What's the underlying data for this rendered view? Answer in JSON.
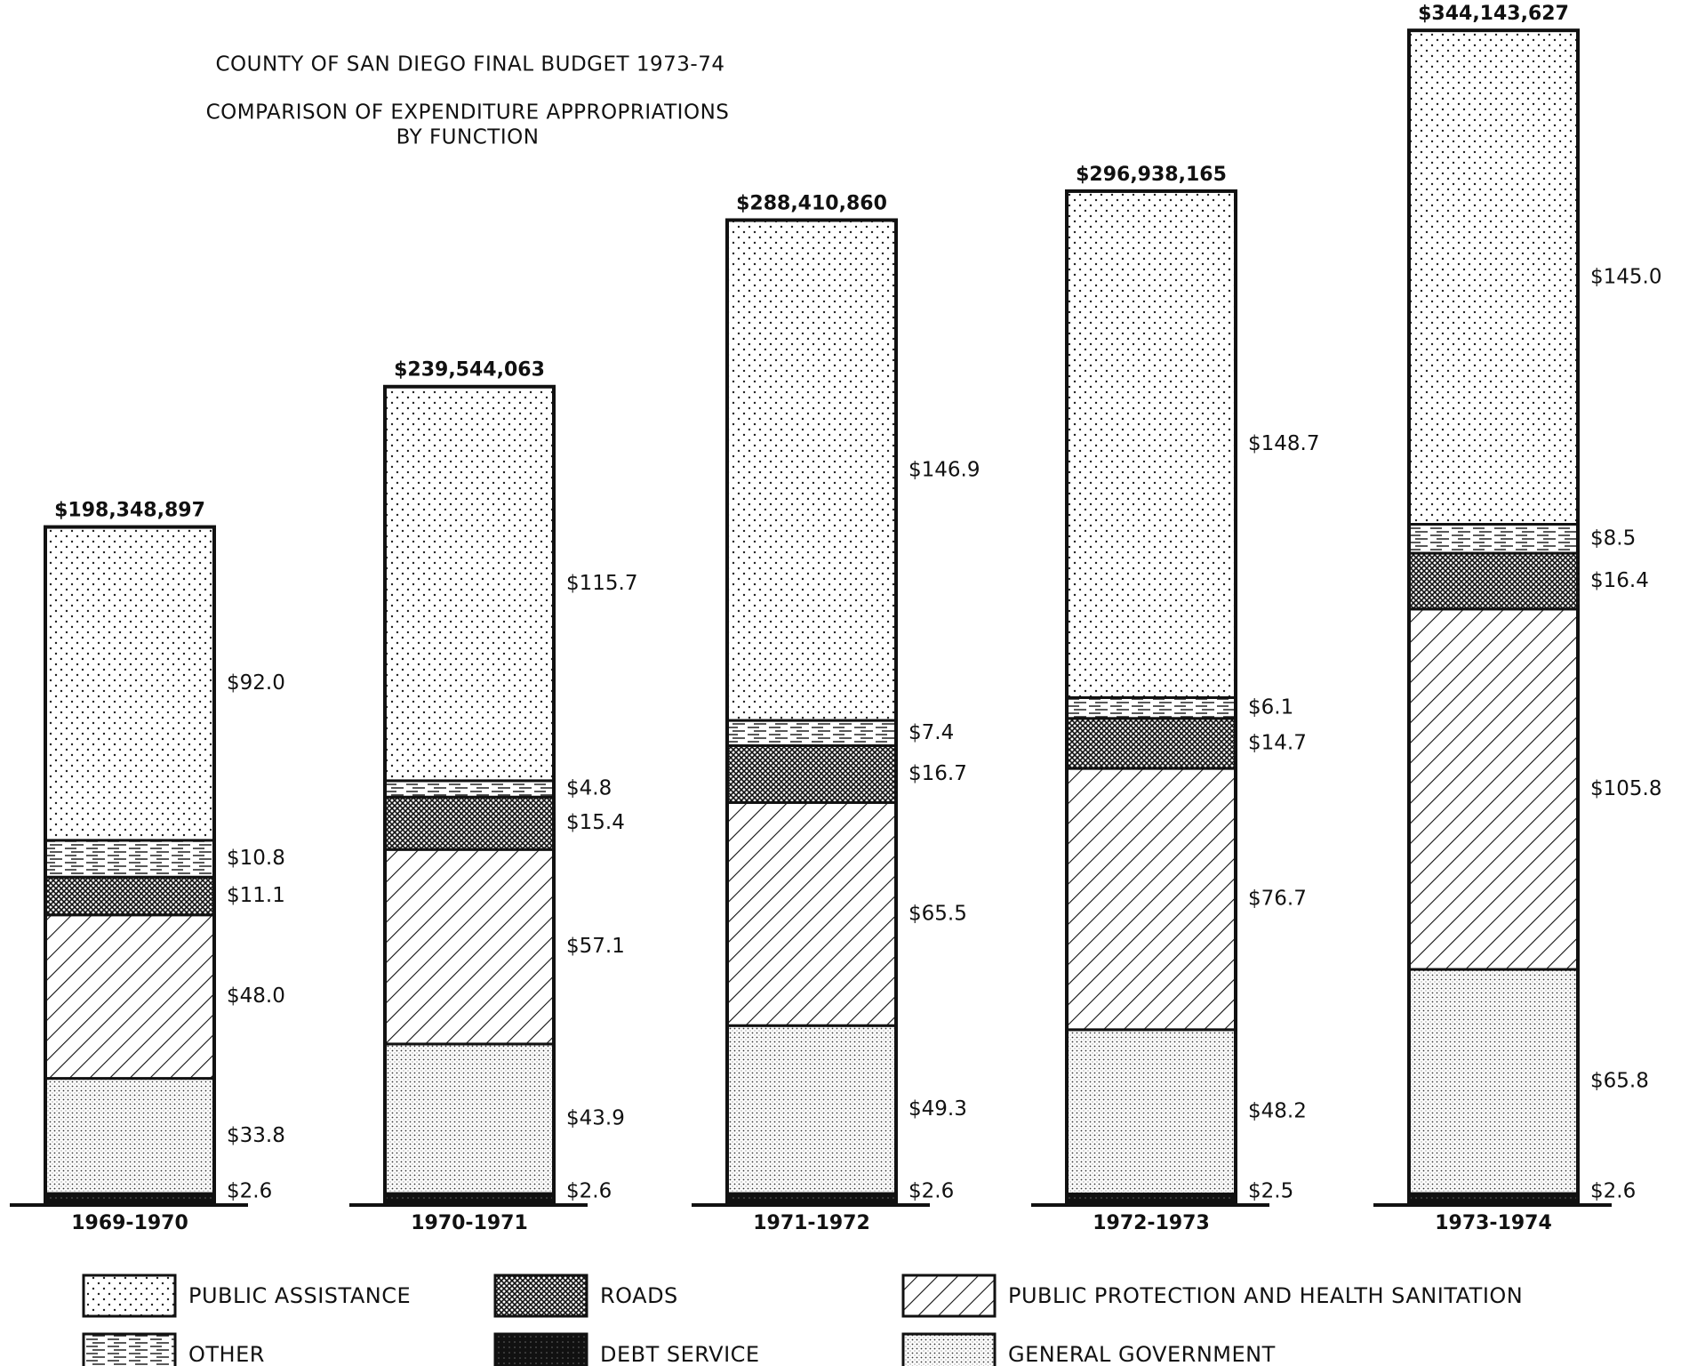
{
  "chart_data": {
    "type": "stacked_bar",
    "title": "COUNTY OF SAN DIEGO FINAL BUDGET 1973-74",
    "subtitle": [
      "COMPARISON OF EXPENDITURE APPROPRIATIONS",
      "BY FUNCTION"
    ],
    "categories": [
      "1969-1970",
      "1970-1971",
      "1971-1972",
      "1972-1973",
      "1973-1974"
    ],
    "series": [
      {
        "name": "DEBT SERVICE",
        "values": [
          2.6,
          2.6,
          2.6,
          2.5,
          2.6
        ],
        "value_labels": [
          "$2.6",
          "$2.6",
          "$2.6",
          "$2.5",
          "$2.6"
        ]
      },
      {
        "name": "GENERAL GOVERNMENT",
        "values": [
          33.8,
          43.9,
          49.3,
          48.2,
          65.8
        ],
        "value_labels": [
          "$33.8",
          "$43.9",
          "$49.3",
          "$48.2",
          "$65.8"
        ]
      },
      {
        "name": "PUBLIC PROTECTION AND HEALTH SANITATION",
        "values": [
          48.0,
          57.1,
          65.5,
          76.7,
          105.8
        ],
        "value_labels": [
          "$48.0",
          "$57.1",
          "$65.5",
          "$76.7",
          "$105.8"
        ]
      },
      {
        "name": "ROADS",
        "values": [
          11.1,
          15.4,
          16.7,
          14.7,
          16.4
        ],
        "value_labels": [
          "$11.1",
          "$15.4",
          "$16.7",
          "$14.7",
          "$16.4"
        ]
      },
      {
        "name": "OTHER",
        "values": [
          10.8,
          4.8,
          7.4,
          6.1,
          8.5
        ],
        "value_labels": [
          "$10.8",
          "$4.8",
          "$7.4",
          "$6.1",
          "$8.5"
        ]
      },
      {
        "name": "PUBLIC ASSISTANCE",
        "values": [
          92.0,
          115.7,
          146.9,
          148.7,
          145.0
        ],
        "value_labels": [
          "$92.0",
          "$115.7",
          "$146.9",
          "$148.7",
          "$145.0"
        ]
      }
    ],
    "totals": [
      {
        "value": 198.348897,
        "label": "$198,348,897"
      },
      {
        "value": 239.544063,
        "label": "$239,544,063"
      },
      {
        "value": 288.41086,
        "label": "$288,410,860"
      },
      {
        "value": 296.938165,
        "label": "$296,938,165"
      },
      {
        "value": 344.143627,
        "label": "$344,143,627"
      }
    ]
  }
}
